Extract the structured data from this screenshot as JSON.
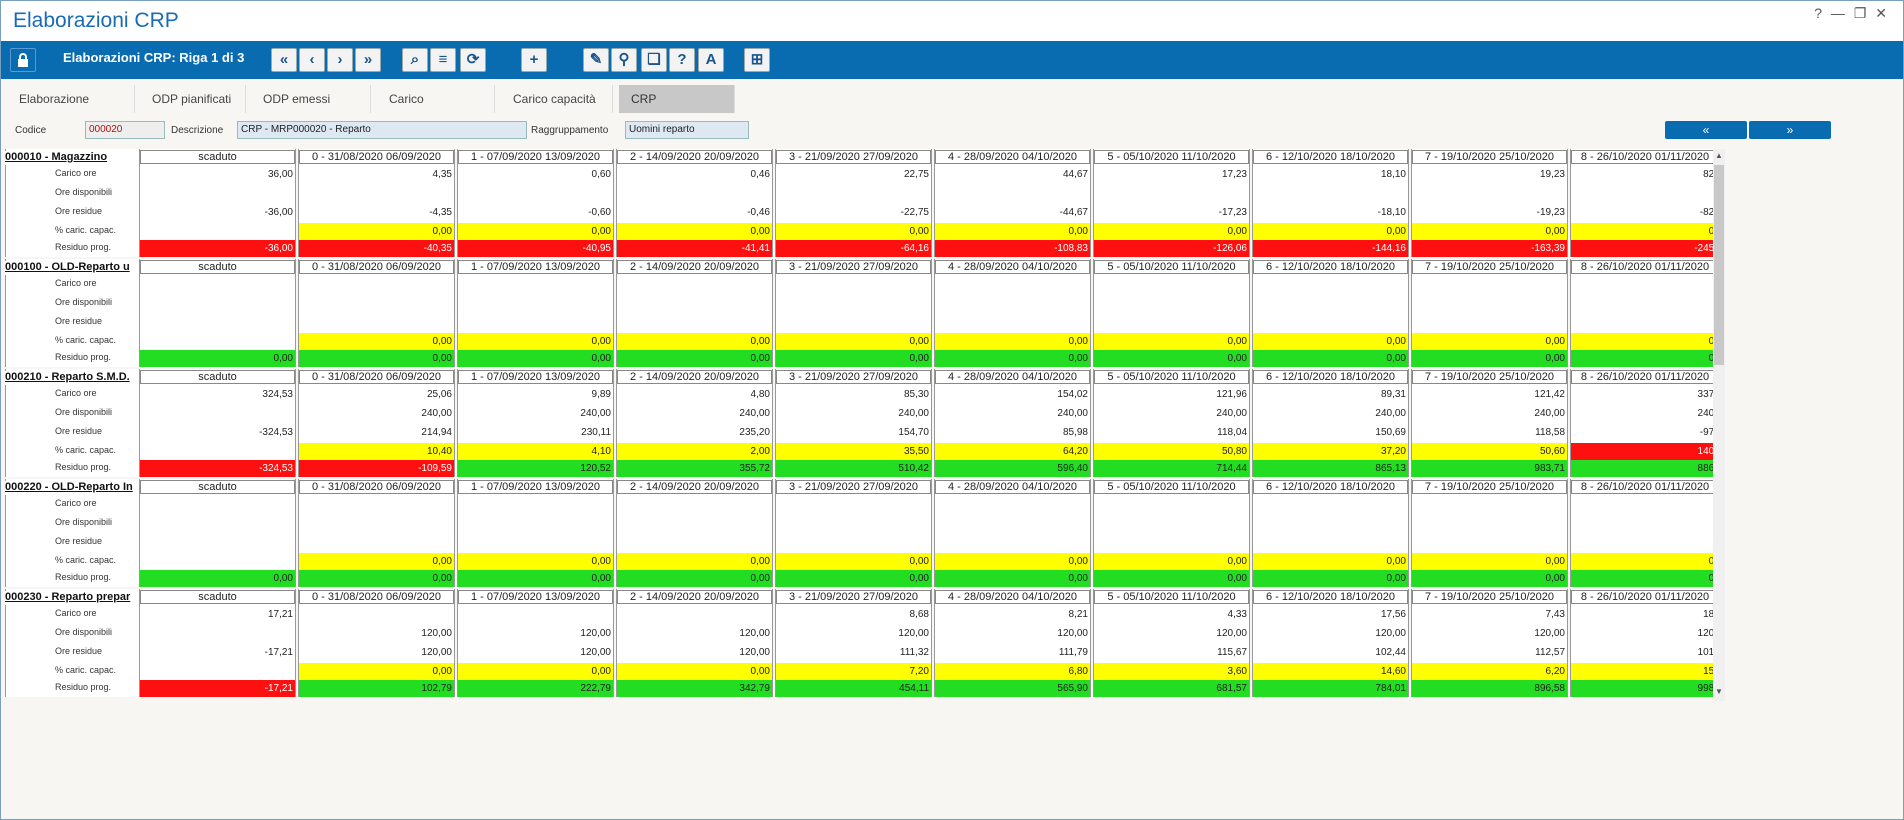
{
  "window": {
    "title": "Elaborazioni CRP",
    "controls": [
      "?",
      "—",
      "❐",
      "✕"
    ]
  },
  "toolbar": {
    "title": "Elaborazioni CRP: Riga 1 di 3",
    "lock_icon": "lock-icon",
    "buttons": [
      {
        "name": "first-record-button",
        "glyph": "«"
      },
      {
        "name": "prev-record-button",
        "glyph": "‹"
      },
      {
        "name": "next-record-button",
        "glyph": "›"
      },
      {
        "name": "last-record-button",
        "glyph": "»"
      },
      {
        "name": "search-button",
        "glyph": "⌕"
      },
      {
        "name": "list-button",
        "glyph": "≡"
      },
      {
        "name": "refresh-button",
        "glyph": "⟳"
      },
      {
        "name": "add-button",
        "glyph": "+"
      },
      {
        "name": "edit-button",
        "glyph": "✎"
      },
      {
        "name": "tool-button-2",
        "glyph": "⚲"
      },
      {
        "name": "tool-button-3",
        "glyph": "❏"
      },
      {
        "name": "tool-button-4",
        "glyph": "?"
      },
      {
        "name": "text-button",
        "glyph": "A"
      },
      {
        "name": "grid-settings-button",
        "glyph": "⊞"
      }
    ]
  },
  "tabs": [
    {
      "label": "Elaborazione",
      "active": false
    },
    {
      "label": "ODP pianificati",
      "active": false
    },
    {
      "label": "ODP emessi",
      "active": false
    },
    {
      "label": "Carico",
      "active": false
    },
    {
      "label": "Carico capacità",
      "active": false
    },
    {
      "label": "CRP",
      "active": true
    }
  ],
  "fields": {
    "codice_label": "Codice",
    "codice_value": "000020",
    "descrizione_label": "Descrizione",
    "descrizione_value": "CRP - MRP000020 - Reparto",
    "raggruppamento_label": "Raggruppamento",
    "raggruppamento_value": "Uomini reparto"
  },
  "nav": {
    "prev_label": "«",
    "next_label": "»"
  },
  "row_labels": [
    "Carico ore",
    "Ore disponibili",
    "Ore residue",
    "% caric. capac.",
    "Residuo prog."
  ],
  "columns": [
    "scaduto",
    "0 - 31/08/2020 06/09/2020",
    "1 - 07/09/2020 13/09/2020",
    "2 - 14/09/2020 20/09/2020",
    "3 - 21/09/2020 27/09/2020",
    "4 - 28/09/2020 04/10/2020",
    "5 - 05/10/2020 11/10/2020",
    "6 - 12/10/2020 18/10/2020",
    "7 - 19/10/2020 25/10/2020",
    "8 - 26/10/2020 01/11/2020"
  ],
  "blocks": [
    {
      "name": "000010 - Magazzino",
      "carico": [
        "36,00",
        "4,35",
        "0,60",
        "0,46",
        "22,75",
        "44,67",
        "17,23",
        "18,10",
        "19,23",
        "82,"
      ],
      "disponibili": [
        "",
        "",
        "",
        "",
        "",
        "",
        "",
        "",
        "",
        ""
      ],
      "residue": [
        "-36,00",
        "-4,35",
        "-0,60",
        "-0,46",
        "-22,75",
        "-44,67",
        "-17,23",
        "-18,10",
        "-19,23",
        "-82,"
      ],
      "perc": [
        "",
        "0,00",
        "0,00",
        "0,00",
        "0,00",
        "0,00",
        "0,00",
        "0,00",
        "0,00",
        "0,"
      ],
      "perc_colors": [
        "",
        "yellow",
        "yellow",
        "yellow",
        "yellow",
        "yellow",
        "yellow",
        "yellow",
        "yellow",
        "yellow"
      ],
      "prog": [
        "-36,00",
        "-40,35",
        "-40,95",
        "-41,41",
        "-64,16",
        "-108,83",
        "-126,06",
        "-144,16",
        "-163,39",
        "-245,"
      ],
      "prog_colors": [
        "red",
        "red",
        "red",
        "red",
        "red",
        "red",
        "red",
        "red",
        "red",
        "red"
      ]
    },
    {
      "name": "000100 - OLD-Reparto u",
      "carico": [
        "",
        "",
        "",
        "",
        "",
        "",
        "",
        "",
        "",
        ""
      ],
      "disponibili": [
        "",
        "",
        "",
        "",
        "",
        "",
        "",
        "",
        "",
        ""
      ],
      "residue": [
        "",
        "",
        "",
        "",
        "",
        "",
        "",
        "",
        "",
        ""
      ],
      "perc": [
        "",
        "0,00",
        "0,00",
        "0,00",
        "0,00",
        "0,00",
        "0,00",
        "0,00",
        "0,00",
        "0,"
      ],
      "perc_colors": [
        "",
        "yellow",
        "yellow",
        "yellow",
        "yellow",
        "yellow",
        "yellow",
        "yellow",
        "yellow",
        "yellow"
      ],
      "prog": [
        "0,00",
        "0,00",
        "0,00",
        "0,00",
        "0,00",
        "0,00",
        "0,00",
        "0,00",
        "0,00",
        "0,"
      ],
      "prog_colors": [
        "green",
        "green",
        "green",
        "green",
        "green",
        "green",
        "green",
        "green",
        "green",
        "green"
      ]
    },
    {
      "name": "000210 - Reparto S.M.D.",
      "carico": [
        "324,53",
        "25,06",
        "9,89",
        "4,80",
        "85,30",
        "154,02",
        "121,96",
        "89,31",
        "121,42",
        "337,"
      ],
      "disponibili": [
        "",
        "240,00",
        "240,00",
        "240,00",
        "240,00",
        "240,00",
        "240,00",
        "240,00",
        "240,00",
        "240,"
      ],
      "residue": [
        "-324,53",
        "214,94",
        "230,11",
        "235,20",
        "154,70",
        "85,98",
        "118,04",
        "150,69",
        "118,58",
        "-97,"
      ],
      "perc": [
        "",
        "10,40",
        "4,10",
        "2,00",
        "35,50",
        "64,20",
        "50,80",
        "37,20",
        "50,60",
        "140,"
      ],
      "perc_colors": [
        "",
        "yellow",
        "yellow",
        "yellow",
        "yellow",
        "yellow",
        "yellow",
        "yellow",
        "yellow",
        "red"
      ],
      "prog": [
        "-324,53",
        "-109,59",
        "120,52",
        "355,72",
        "510,42",
        "596,40",
        "714,44",
        "865,13",
        "983,71",
        "886,"
      ],
      "prog_colors": [
        "red",
        "red",
        "green",
        "green",
        "green",
        "green",
        "green",
        "green",
        "green",
        "green"
      ]
    },
    {
      "name": "000220 - OLD-Reparto In",
      "carico": [
        "",
        "",
        "",
        "",
        "",
        "",
        "",
        "",
        "",
        ""
      ],
      "disponibili": [
        "",
        "",
        "",
        "",
        "",
        "",
        "",
        "",
        "",
        ""
      ],
      "residue": [
        "",
        "",
        "",
        "",
        "",
        "",
        "",
        "",
        "",
        ""
      ],
      "perc": [
        "",
        "0,00",
        "0,00",
        "0,00",
        "0,00",
        "0,00",
        "0,00",
        "0,00",
        "0,00",
        "0,"
      ],
      "perc_colors": [
        "",
        "yellow",
        "yellow",
        "yellow",
        "yellow",
        "yellow",
        "yellow",
        "yellow",
        "yellow",
        "yellow"
      ],
      "prog": [
        "0,00",
        "0,00",
        "0,00",
        "0,00",
        "0,00",
        "0,00",
        "0,00",
        "0,00",
        "0,00",
        "0,"
      ],
      "prog_colors": [
        "green",
        "green",
        "green",
        "green",
        "green",
        "green",
        "green",
        "green",
        "green",
        "green"
      ]
    },
    {
      "name": "000230 - Reparto prepar",
      "carico": [
        "17,21",
        "",
        "",
        "",
        "8,68",
        "8,21",
        "4,33",
        "17,56",
        "7,43",
        "18,"
      ],
      "disponibili": [
        "",
        "120,00",
        "120,00",
        "120,00",
        "120,00",
        "120,00",
        "120,00",
        "120,00",
        "120,00",
        "120,"
      ],
      "residue": [
        "-17,21",
        "120,00",
        "120,00",
        "120,00",
        "111,32",
        "111,79",
        "115,67",
        "102,44",
        "112,57",
        "101,"
      ],
      "perc": [
        "",
        "0,00",
        "0,00",
        "0,00",
        "7,20",
        "6,80",
        "3,60",
        "14,60",
        "6,20",
        "15,"
      ],
      "perc_colors": [
        "",
        "yellow",
        "yellow",
        "yellow",
        "yellow",
        "yellow",
        "yellow",
        "yellow",
        "yellow",
        "yellow"
      ],
      "prog": [
        "-17,21",
        "102,79",
        "222,79",
        "342,79",
        "454,11",
        "565,90",
        "681,57",
        "784,01",
        "896,58",
        "998,"
      ],
      "prog_colors": [
        "red",
        "green",
        "green",
        "green",
        "green",
        "green",
        "green",
        "green",
        "green",
        "green"
      ]
    }
  ]
}
